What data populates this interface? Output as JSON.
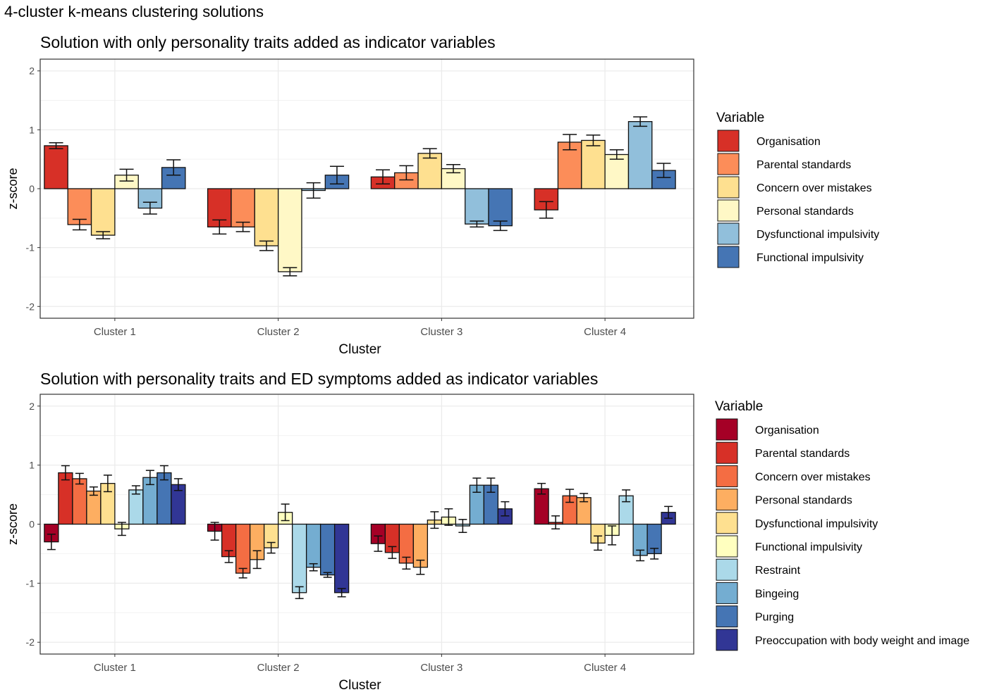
{
  "figure_title": "4-cluster k-means clustering solutions",
  "chart_data": [
    {
      "type": "bar",
      "title": "Solution with only personality traits added as indicator variables",
      "xlabel": "Cluster",
      "ylabel": "z-score",
      "ylim": [
        -2.2,
        2.2
      ],
      "yticks": [
        2,
        1,
        0,
        -1,
        -2
      ],
      "grid": true,
      "legend_title": "Variable",
      "legend_position": "right",
      "categories": [
        "Cluster 1",
        "Cluster 2",
        "Cluster 3",
        "Cluster 4"
      ],
      "series": [
        {
          "name": "Organisation",
          "color": "#d73027",
          "values": [
            0.73,
            -0.65,
            0.2,
            -0.36
          ],
          "err": [
            0.05,
            0.12,
            0.12,
            0.14
          ]
        },
        {
          "name": "Parental standards",
          "color": "#fc8d59",
          "values": [
            -0.61,
            -0.65,
            0.27,
            0.79
          ],
          "err": [
            0.09,
            0.08,
            0.12,
            0.13
          ]
        },
        {
          "name": "Concern over mistakes",
          "color": "#fee090",
          "values": [
            -0.79,
            -0.97,
            0.6,
            0.82
          ],
          "err": [
            0.06,
            0.08,
            0.08,
            0.09
          ]
        },
        {
          "name": "Personal standards",
          "color": "#fff8c6",
          "values": [
            0.23,
            -1.41,
            0.34,
            0.58
          ],
          "err": [
            0.1,
            0.07,
            0.07,
            0.08
          ]
        },
        {
          "name": "Dysfunctional impulsivity",
          "color": "#91bfdb",
          "values": [
            -0.33,
            -0.03,
            -0.6,
            1.14
          ],
          "err": [
            0.1,
            0.13,
            0.05,
            0.08
          ]
        },
        {
          "name": "Functional impulsivity",
          "color": "#4575b4",
          "values": [
            0.36,
            0.23,
            -0.63,
            0.31
          ],
          "err": [
            0.13,
            0.15,
            0.08,
            0.12
          ]
        }
      ]
    },
    {
      "type": "bar",
      "title": "Solution with personality traits and ED symptoms added as indicator variables",
      "xlabel": "Cluster",
      "ylabel": "z-score",
      "ylim": [
        -2.2,
        2.2
      ],
      "yticks": [
        2,
        1,
        0,
        -1,
        -2
      ],
      "grid": true,
      "legend_title": "Variable",
      "legend_position": "right",
      "categories": [
        "Cluster 1",
        "Cluster 2",
        "Cluster 3",
        "Cluster 4"
      ],
      "series": [
        {
          "name": "Organisation",
          "color": "#a50026",
          "values": [
            -0.3,
            -0.12,
            -0.33,
            0.6
          ],
          "err": [
            0.13,
            0.15,
            0.13,
            0.09
          ]
        },
        {
          "name": "Parental standards",
          "color": "#d73027",
          "values": [
            0.87,
            -0.55,
            -0.48,
            0.03
          ],
          "err": [
            0.12,
            0.1,
            0.1,
            0.11
          ]
        },
        {
          "name": "Concern over mistakes",
          "color": "#f46d43",
          "values": [
            0.77,
            -0.83,
            -0.66,
            0.48
          ],
          "err": [
            0.09,
            0.08,
            0.1,
            0.11
          ]
        },
        {
          "name": "Personal standards",
          "color": "#fdae61",
          "values": [
            0.56,
            -0.6,
            -0.73,
            0.45
          ],
          "err": [
            0.07,
            0.15,
            0.12,
            0.07
          ]
        },
        {
          "name": "Dysfunctional impulsivity",
          "color": "#fee090",
          "values": [
            0.69,
            -0.4,
            0.07,
            -0.32
          ],
          "err": [
            0.14,
            0.09,
            0.14,
            0.12
          ]
        },
        {
          "name": "Functional impulsivity",
          "color": "#ffffbf",
          "values": [
            -0.08,
            0.2,
            0.12,
            -0.19
          ],
          "err": [
            0.11,
            0.14,
            0.14,
            0.16
          ]
        },
        {
          "name": "Restraint",
          "color": "#abd9e9",
          "values": [
            0.58,
            -1.16,
            -0.03,
            0.48
          ],
          "err": [
            0.07,
            0.1,
            0.11,
            0.1
          ]
        },
        {
          "name": "Bingeing",
          "color": "#74add1",
          "values": [
            0.79,
            -0.73,
            0.66,
            -0.53
          ],
          "err": [
            0.12,
            0.06,
            0.12,
            0.09
          ]
        },
        {
          "name": "Purging",
          "color": "#4575b4",
          "values": [
            0.87,
            -0.86,
            0.66,
            -0.5
          ],
          "err": [
            0.12,
            0.04,
            0.12,
            0.09
          ]
        },
        {
          "name": "Preoccupation with body weight and image",
          "color": "#313695",
          "values": [
            0.67,
            -1.16,
            0.26,
            0.2
          ],
          "err": [
            0.1,
            0.07,
            0.12,
            0.1
          ]
        }
      ]
    }
  ]
}
